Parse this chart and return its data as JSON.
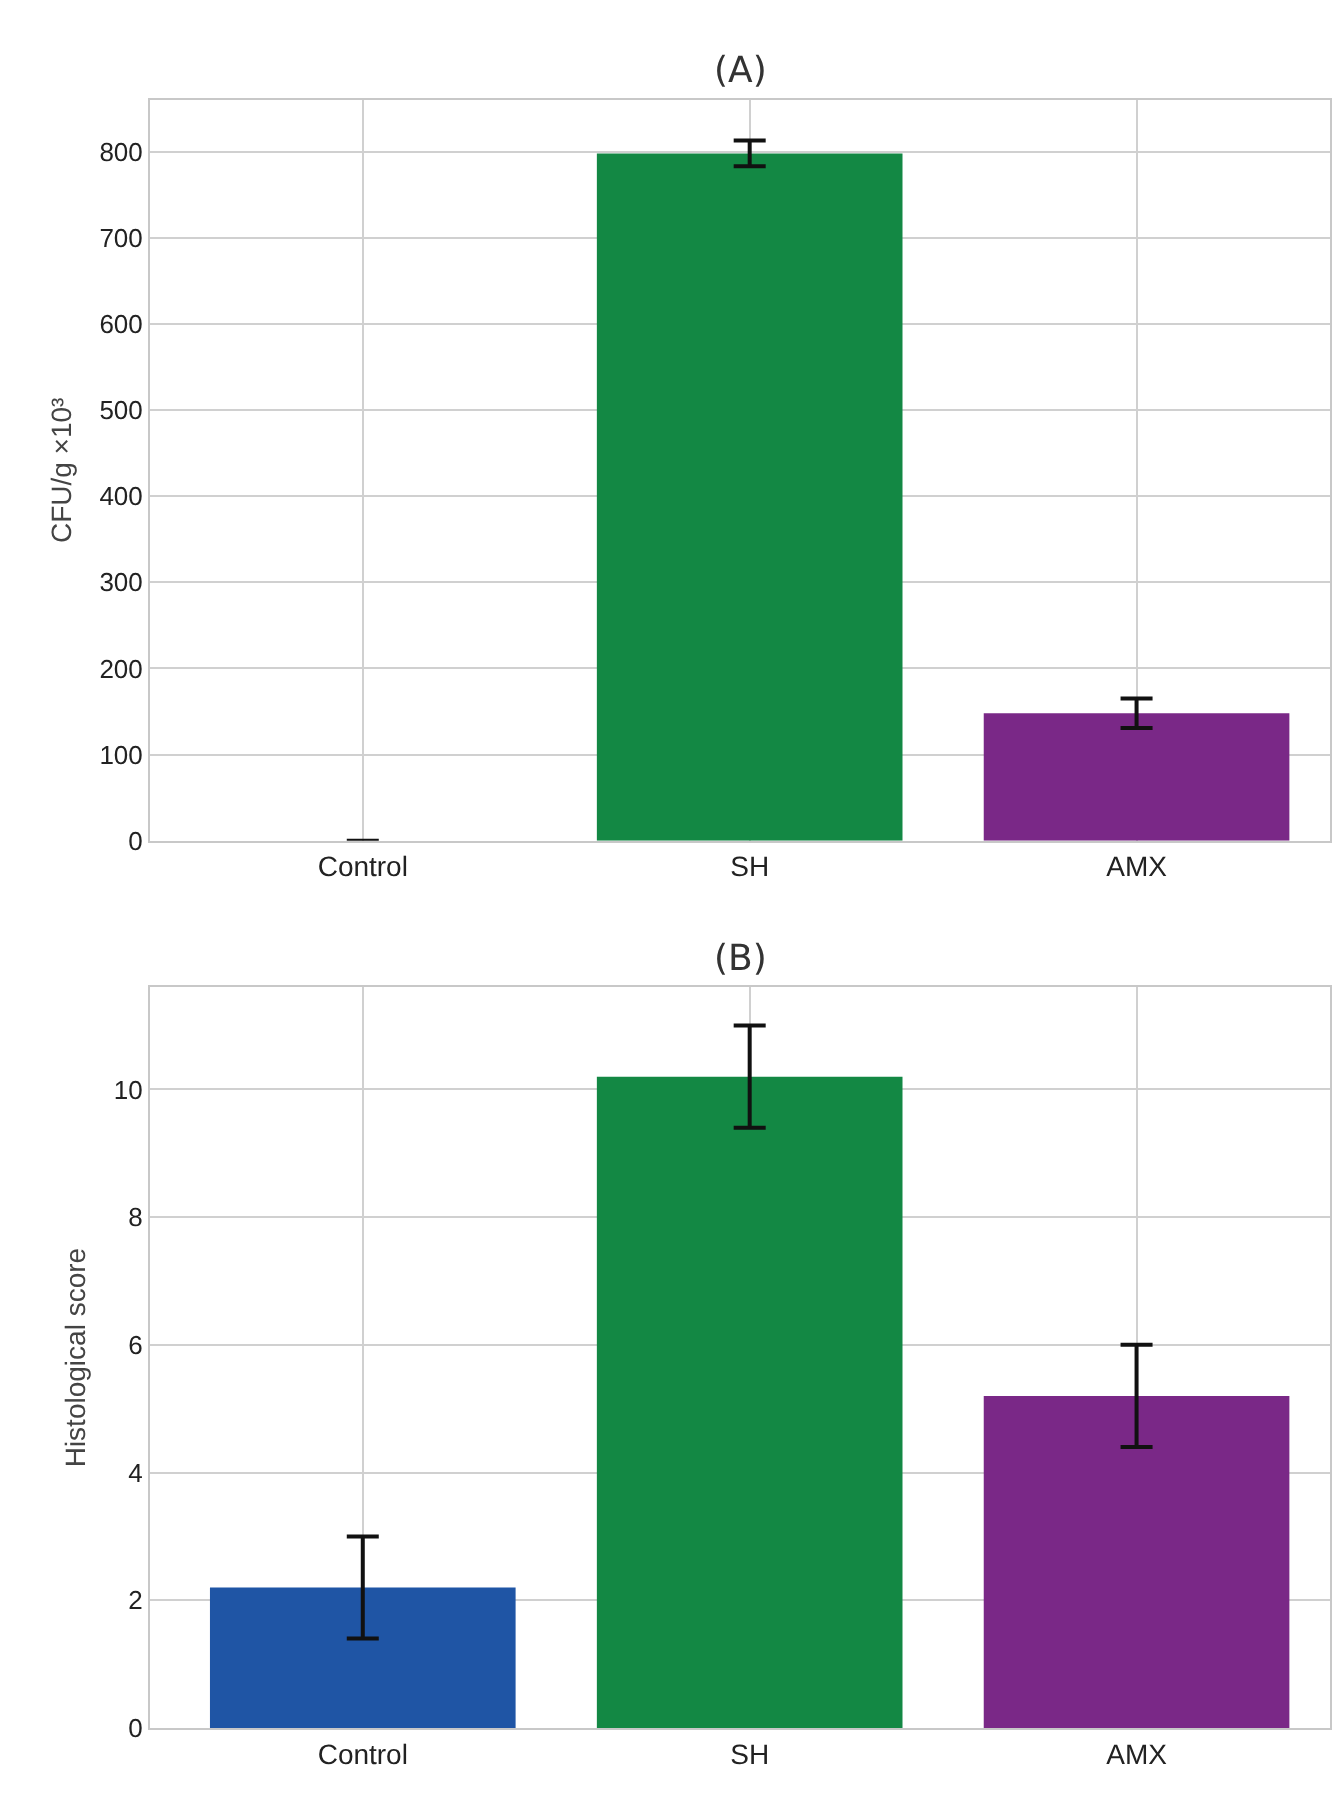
{
  "chart_data": [
    {
      "type": "bar",
      "title": "(A)",
      "ylabel": "CFU/g ×10³",
      "categories": [
        "Control",
        "SH",
        "AMX"
      ],
      "values": [
        0,
        798,
        148
      ],
      "errors": [
        null,
        15,
        17
      ],
      "colors": [
        "#1f55a5",
        "#138844",
        "#7a2887"
      ],
      "ylim": [
        0,
        860
      ],
      "yticks": [
        0,
        100,
        200,
        300,
        400,
        500,
        600,
        700,
        800
      ],
      "grid": true
    },
    {
      "type": "bar",
      "title": "(B)",
      "ylabel": "Histological score",
      "categories": [
        "Control",
        "SH",
        "AMX"
      ],
      "values": [
        2.2,
        10.2,
        5.2
      ],
      "errors": [
        0.8,
        0.8,
        0.8
      ],
      "colors": [
        "#1f55a5",
        "#138844",
        "#7a2887"
      ],
      "ylim": [
        0,
        11.6
      ],
      "yticks": [
        0,
        2,
        4,
        6,
        8,
        10
      ],
      "grid": true
    }
  ]
}
